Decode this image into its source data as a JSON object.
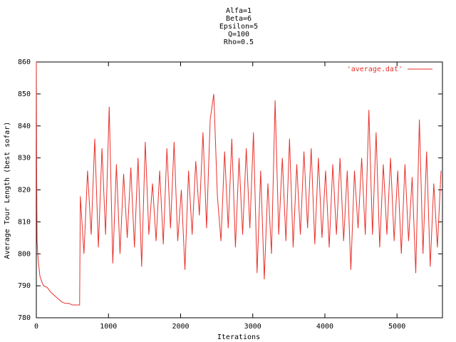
{
  "chart_data": {
    "type": "line",
    "title": [
      "Alfa=1",
      "Beta=6",
      "Epsilon=5",
      "Q=100",
      "Rho=0.5"
    ],
    "x_label": "Iterations",
    "y_label": "Average Tour Length (best sofar)",
    "xlim": [
      0,
      5630
    ],
    "ylim": [
      780,
      860
    ],
    "xticks": [
      0,
      1000,
      2000,
      3000,
      4000,
      5000
    ],
    "yticks": [
      780,
      790,
      800,
      810,
      820,
      830,
      840,
      850,
      860
    ],
    "legend": "top-right",
    "x": [
      0,
      5,
      10,
      20,
      30,
      50,
      80,
      100,
      150,
      200,
      250,
      300,
      350,
      400,
      450,
      500,
      550,
      600,
      610,
      660,
      710,
      760,
      810,
      860,
      910,
      960,
      1010,
      1060,
      1110,
      1160,
      1210,
      1260,
      1310,
      1360,
      1410,
      1460,
      1510,
      1560,
      1610,
      1660,
      1710,
      1760,
      1810,
      1860,
      1910,
      1960,
      2010,
      2060,
      2110,
      2160,
      2210,
      2260,
      2310,
      2360,
      2410,
      2460,
      2510,
      2560,
      2610,
      2660,
      2710,
      2760,
      2810,
      2860,
      2910,
      2960,
      3010,
      3060,
      3110,
      3160,
      3210,
      3260,
      3310,
      3360,
      3410,
      3460,
      3510,
      3560,
      3610,
      3660,
      3710,
      3760,
      3810,
      3860,
      3910,
      3960,
      4010,
      4060,
      4110,
      4160,
      4210,
      4260,
      4310,
      4360,
      4410,
      4460,
      4510,
      4560,
      4610,
      4660,
      4710,
      4760,
      4810,
      4860,
      4910,
      4960,
      5010,
      5060,
      5110,
      5160,
      5210,
      5260,
      5310,
      5360,
      5410,
      5460,
      5510,
      5560,
      5610
    ],
    "series": [
      {
        "name": "'average.dat'",
        "color": "#e8312b",
        "values": [
          860,
          824,
          804,
          800,
          797,
          793,
          791,
          790,
          789.5,
          788,
          787,
          786,
          785,
          784.5,
          784.5,
          784,
          784,
          784,
          818,
          800,
          826,
          806,
          836,
          802,
          833,
          806,
          846,
          797,
          828,
          800,
          825,
          805,
          827,
          802,
          830,
          796,
          835,
          806,
          822,
          804,
          826,
          803,
          833,
          808,
          835,
          804,
          820,
          795,
          826,
          806,
          829,
          812,
          838,
          808,
          842,
          850,
          818,
          804,
          832,
          808,
          836,
          802,
          830,
          806,
          833,
          808,
          838,
          794,
          826,
          792,
          822,
          800,
          848,
          806,
          830,
          804,
          836,
          802,
          828,
          806,
          832,
          808,
          833,
          803,
          830,
          805,
          826,
          802,
          828,
          806,
          830,
          804,
          826,
          795,
          826,
          808,
          830,
          806,
          845,
          806,
          838,
          802,
          828,
          806,
          830,
          804,
          826,
          800,
          828,
          804,
          824,
          794,
          842,
          800,
          832,
          796,
          822,
          802,
          826
        ]
      }
    ]
  }
}
